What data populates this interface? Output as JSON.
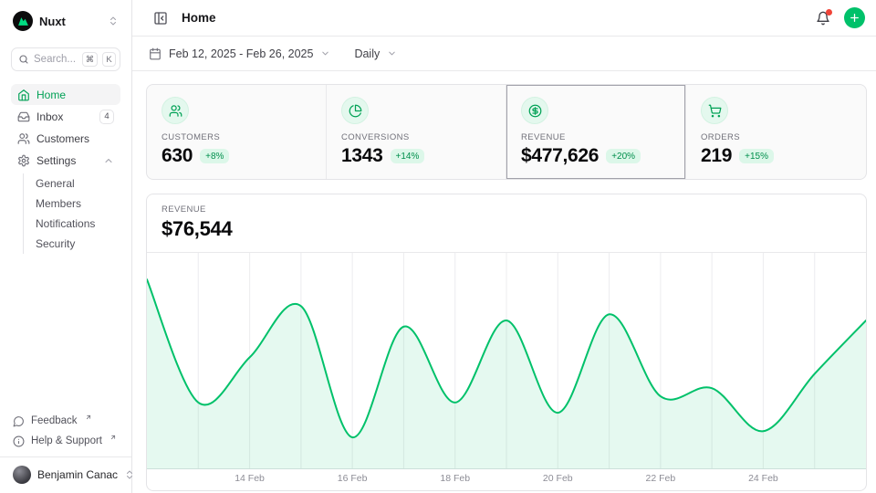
{
  "sidebar": {
    "workspace": {
      "name": "Nuxt"
    },
    "search": {
      "placeholder": "Search...",
      "kbd": [
        "⌘",
        "K"
      ]
    },
    "items": [
      {
        "label": "Home",
        "active": true
      },
      {
        "label": "Inbox",
        "badge": "4"
      },
      {
        "label": "Customers"
      },
      {
        "label": "Settings",
        "expanded": true
      }
    ],
    "settings_children": [
      {
        "label": "General"
      },
      {
        "label": "Members"
      },
      {
        "label": "Notifications"
      },
      {
        "label": "Security"
      }
    ],
    "footer_links": [
      {
        "label": "Feedback"
      },
      {
        "label": "Help & Support"
      }
    ],
    "user": {
      "name": "Benjamin Canac"
    }
  },
  "header": {
    "title": "Home"
  },
  "toolbar": {
    "date_range": "Feb 12, 2025 - Feb 26, 2025",
    "period": "Daily"
  },
  "stats": [
    {
      "label": "CUSTOMERS",
      "value": "630",
      "delta": "+8%",
      "icon": "users-icon"
    },
    {
      "label": "CONVERSIONS",
      "value": "1343",
      "delta": "+14%",
      "icon": "pie-chart-icon"
    },
    {
      "label": "REVENUE",
      "value": "$477,626",
      "delta": "+20%",
      "icon": "dollar-circle-icon",
      "selected": true
    },
    {
      "label": "ORDERS",
      "value": "219",
      "delta": "+15%",
      "icon": "shopping-cart-icon"
    }
  ],
  "chart_panel": {
    "label": "REVENUE",
    "value": "$76,544"
  },
  "chart_data": {
    "type": "area",
    "title": "Daily revenue, Feb 12 2025 - Feb 26 2025",
    "x": [
      "12 Feb",
      "13 Feb",
      "14 Feb",
      "15 Feb",
      "16 Feb",
      "17 Feb",
      "18 Feb",
      "19 Feb",
      "20 Feb",
      "21 Feb",
      "22 Feb",
      "23 Feb",
      "24 Feb",
      "25 Feb",
      "26 Feb"
    ],
    "values": [
      90000,
      30000,
      52000,
      77000,
      13000,
      67000,
      30000,
      70000,
      25000,
      73000,
      33000,
      37000,
      16000,
      44000,
      70000
    ],
    "tick_labels": [
      "14 Feb",
      "16 Feb",
      "18 Feb",
      "20 Feb",
      "22 Feb",
      "24 Feb"
    ],
    "tick_indices": [
      2,
      4,
      6,
      8,
      10,
      12
    ],
    "ylim": [
      0,
      103000
    ],
    "xlabel": "",
    "ylabel": "",
    "grid": "vertical",
    "legend": "none",
    "line_color": "#00c16a",
    "fill_color": "rgba(0,193,106,0.10)"
  },
  "colors": {
    "primary": "#00c16a",
    "alert": "#f04438",
    "border": "#e4e4e7"
  }
}
